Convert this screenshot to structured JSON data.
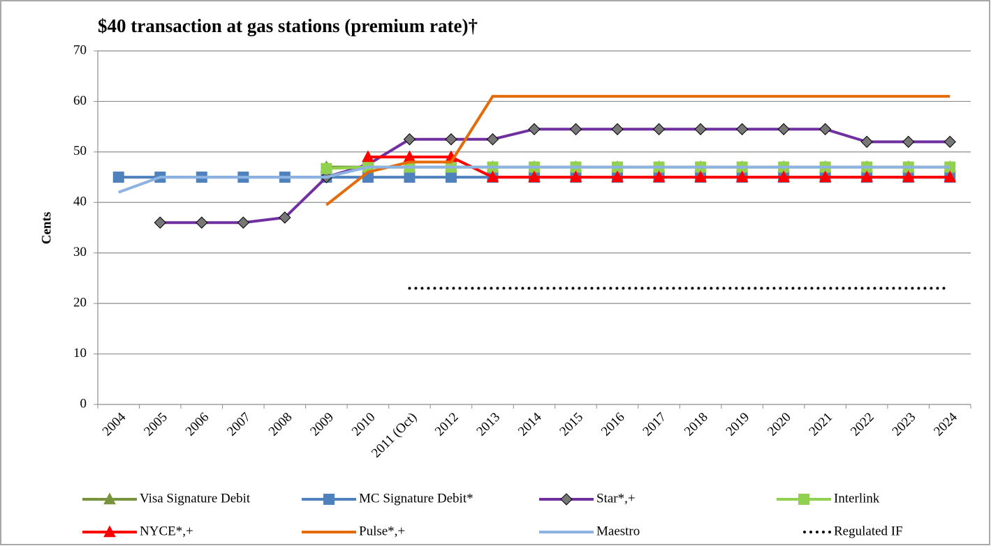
{
  "chart_data": {
    "type": "line",
    "title": "$40 transaction at gas stations (premium rate)†",
    "y_label": "Cents",
    "categories": [
      "2004",
      "2005",
      "2006",
      "2007",
      "2008",
      "2009",
      "2010",
      "2011 (Oct)",
      "2012",
      "2013",
      "2014",
      "2015",
      "2016",
      "2017",
      "2018",
      "2019",
      "2020",
      "2021",
      "2022",
      "2023",
      "2024"
    ],
    "ylim": [
      0,
      70
    ],
    "yticks": [
      0,
      10,
      20,
      30,
      40,
      50,
      60,
      70
    ],
    "grid": true,
    "series": [
      {
        "name": "Visa Signature Debit",
        "color": "#77933c",
        "marker": "triangle",
        "values": [
          null,
          null,
          null,
          null,
          null,
          47,
          47,
          47,
          47,
          47,
          47,
          47,
          47,
          47,
          47,
          47,
          47,
          47,
          47,
          47,
          47
        ]
      },
      {
        "name": "MC Signature Debit*",
        "color": "#4f81bd",
        "marker": "square",
        "values": [
          45,
          45,
          45,
          45,
          45,
          45,
          45,
          45,
          45,
          45,
          45,
          45,
          45,
          45,
          45,
          45,
          45,
          45,
          45,
          45,
          45
        ]
      },
      {
        "name": "Star*,+",
        "color": "#7030a0",
        "marker": "diamond",
        "values": [
          null,
          36,
          36,
          36,
          37,
          45,
          47.5,
          52.5,
          52.5,
          52.5,
          54.5,
          54.5,
          54.5,
          54.5,
          54.5,
          54.5,
          54.5,
          54.5,
          52,
          52,
          52
        ]
      },
      {
        "name": "Interlink",
        "color": "#92d050",
        "marker": "square",
        "values": [
          null,
          null,
          null,
          null,
          null,
          46.7,
          47,
          47,
          47,
          47,
          47,
          47,
          47,
          47,
          47,
          47,
          47,
          47,
          47,
          47,
          47
        ]
      },
      {
        "name": "NYCE*,+",
        "color": "#ff0000",
        "marker": "triangle",
        "values": [
          null,
          null,
          null,
          null,
          null,
          null,
          49,
          49,
          49,
          45,
          45,
          45,
          45,
          45,
          45,
          45,
          45,
          45,
          45,
          45,
          45
        ]
      },
      {
        "name": "Pulse*,+",
        "color": "#e36c09",
        "marker": null,
        "values": [
          null,
          null,
          null,
          null,
          null,
          39.5,
          46,
          48,
          48,
          61,
          61,
          61,
          61,
          61,
          61,
          61,
          61,
          61,
          61,
          61,
          61
        ]
      },
      {
        "name": "Maestro",
        "color": "#8db3e2",
        "marker": null,
        "values": [
          42,
          45,
          45,
          45,
          45,
          45,
          47,
          47,
          47,
          47,
          47,
          47,
          47,
          47,
          47,
          47,
          47,
          47,
          47,
          47,
          47
        ]
      },
      {
        "name": "Regulated IF",
        "color": "#000000",
        "marker": null,
        "dash": "dotted",
        "values": [
          null,
          null,
          null,
          null,
          null,
          null,
          null,
          23,
          23,
          23,
          23,
          23,
          23,
          23,
          23,
          23,
          23,
          23,
          23,
          23,
          23
        ]
      }
    ]
  }
}
